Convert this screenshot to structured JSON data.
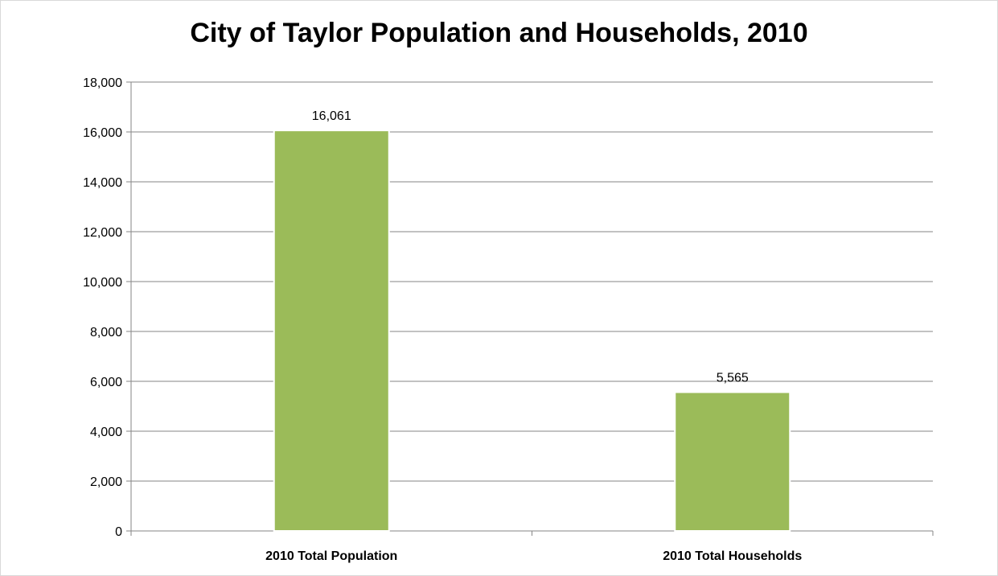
{
  "chart_data": {
    "type": "bar",
    "title": "City of Taylor Population and Households, 2010",
    "categories": [
      "2010 Total Population",
      "2010 Total Households"
    ],
    "values": [
      16061,
      5565
    ],
    "data_labels": [
      "16,061",
      "5,565"
    ],
    "xlabel": "",
    "ylabel": "",
    "ylim": [
      0,
      18000
    ],
    "yticks": [
      0,
      2000,
      4000,
      6000,
      8000,
      10000,
      12000,
      14000,
      16000,
      18000
    ],
    "ytick_labels": [
      "0",
      "2,000",
      "4,000",
      "6,000",
      "8,000",
      "10,000",
      "12,000",
      "14,000",
      "16,000",
      "18,000"
    ],
    "grid": true,
    "legend": "none",
    "colors": {
      "bar": "#9bbb59",
      "bar_edge": "#ffffff",
      "grid": "#868686",
      "axis": "#868686"
    }
  }
}
